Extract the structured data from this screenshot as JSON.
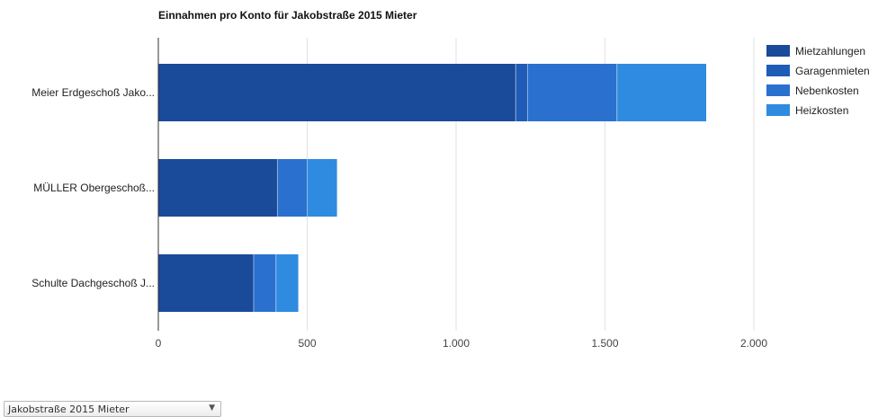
{
  "chart_data": {
    "type": "bar",
    "orientation": "horizontal",
    "stacked": true,
    "title": "Einnahmen pro Konto für Jakobstraße 2015 Mieter",
    "categories": [
      "Meier Erdgeschoß Jako...",
      "MÜLLER Obergeschoß...",
      "Schulte Dachgeschoß J..."
    ],
    "series": [
      {
        "name": "Mietzahlungen",
        "color": "#1a4a9a",
        "values": [
          1200,
          400,
          320
        ]
      },
      {
        "name": "Garagenmieten",
        "color": "#1f5cb5",
        "values": [
          40,
          0,
          0
        ]
      },
      {
        "name": "Nebenkosten",
        "color": "#2a71cf",
        "values": [
          300,
          100,
          75
        ]
      },
      {
        "name": "Heizkosten",
        "color": "#2f8be0",
        "values": [
          300,
          100,
          75
        ]
      }
    ],
    "xlim": [
      0,
      2000
    ],
    "xticks": [
      0,
      500,
      1000,
      1500,
      2000
    ],
    "xtick_labels": [
      "0",
      "500",
      "1.000",
      "1.500",
      "2.000"
    ],
    "xlabel": "",
    "ylabel": "",
    "grid": true,
    "legend_position": "right"
  },
  "controls": {
    "account_filter": "Jakobstraße 2015 Mieter"
  }
}
